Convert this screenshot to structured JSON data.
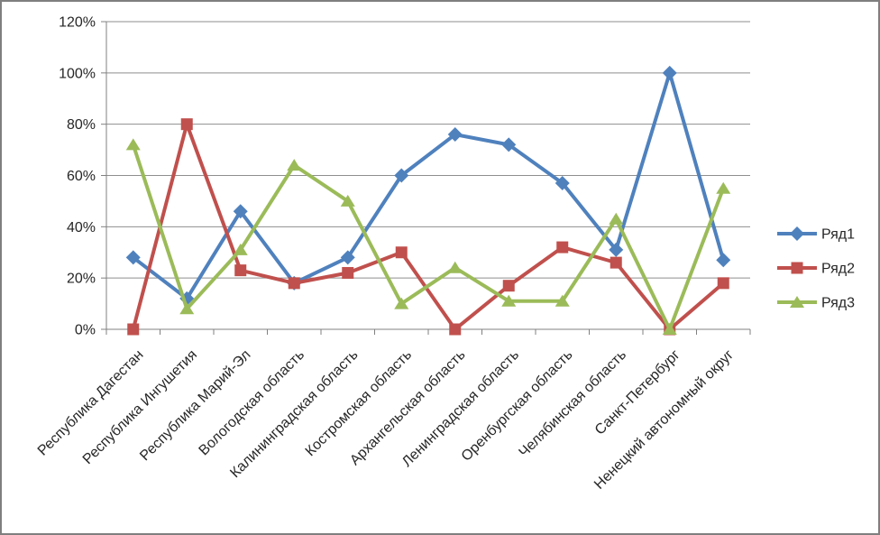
{
  "chart_data": {
    "type": "line",
    "title": "",
    "xlabel": "",
    "ylabel": "",
    "categories": [
      "Республика Дагестан",
      "Республика Ингушетия",
      "Республика Марий-Эл",
      "Вологодская область",
      "Калининградская область",
      "Костромская область",
      "Архангельская область",
      "Ленинградская область",
      "Оренбургская область",
      "Челябинская область",
      "Санкт-Петербург",
      "Ненецкий автономный округ"
    ],
    "series": [
      {
        "name": "Ряд1",
        "marker": "diamond",
        "color": "#4F81BD",
        "values": [
          28,
          12,
          46,
          18,
          28,
          60,
          76,
          72,
          57,
          31,
          100,
          27
        ]
      },
      {
        "name": "Ряд2",
        "marker": "square",
        "color": "#C0504D",
        "values": [
          0,
          80,
          23,
          18,
          22,
          30,
          0,
          17,
          32,
          26,
          0,
          18
        ]
      },
      {
        "name": "Ряд3",
        "marker": "triangle",
        "color": "#9BBB59",
        "values": [
          72,
          8,
          31,
          64,
          50,
          10,
          24,
          11,
          11,
          43,
          0,
          55
        ]
      }
    ],
    "ylim": [
      0,
      120
    ],
    "ytick_step": 20,
    "ytick_labels": [
      "0%",
      "20%",
      "40%",
      "60%",
      "80%",
      "100%",
      "120%"
    ],
    "grid": true,
    "legend_position": "right"
  },
  "colors": {
    "background": "#ffffff",
    "frame_border": "#7f7f7f",
    "axis": "#808080",
    "gridline": "#8e8e8e",
    "text": "#262626"
  }
}
